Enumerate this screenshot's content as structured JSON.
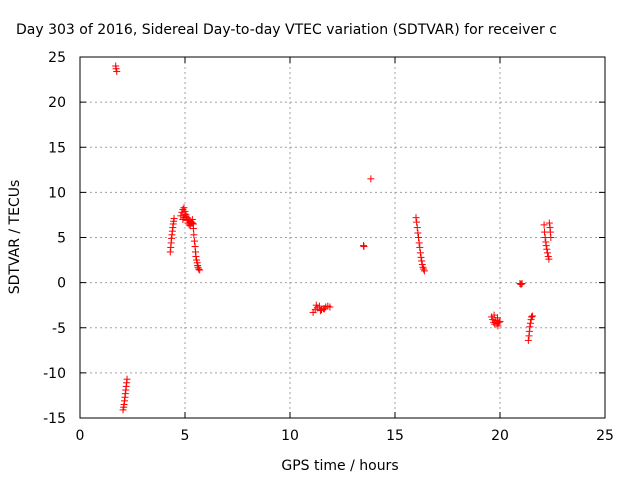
{
  "chart_data": {
    "type": "scatter",
    "title": "Day 303 of 2016, Sidereal Day-to-day VTEC variation (SDTVAR) for receiver c",
    "xlabel": "GPS time / hours",
    "ylabel": "SDTVAR / TECUs",
    "xlim": [
      0,
      25
    ],
    "ylim": [
      -15,
      25
    ],
    "xticks": [
      "0",
      "5",
      "10",
      "15",
      "20",
      "25"
    ],
    "yticks": [
      "25",
      "20",
      "15",
      "10",
      "5",
      "0",
      "-5",
      "-10",
      "-15"
    ],
    "xtick_values": [
      0,
      5,
      10,
      15,
      20,
      25
    ],
    "ytick_values": [
      25,
      20,
      15,
      10,
      5,
      0,
      -5,
      -10,
      -15
    ],
    "grid": true,
    "marker": "+",
    "color": "#ff0000",
    "clusters": [
      {
        "x": [
          1.7,
          1.72,
          1.75
        ],
        "y": [
          24.0,
          23.7,
          23.4
        ]
      },
      {
        "x": [
          2.05,
          2.08,
          2.1,
          2.12,
          2.14,
          2.16,
          2.18,
          2.2,
          2.22,
          2.24
        ],
        "y": [
          -14.1,
          -13.8,
          -13.5,
          -13.1,
          -12.7,
          -12.3,
          -11.9,
          -11.5,
          -11.1,
          -10.7
        ]
      },
      {
        "x": [
          4.3,
          4.32,
          4.34,
          4.36,
          4.38,
          4.4,
          4.42,
          4.44,
          4.46,
          4.48
        ],
        "y": [
          3.4,
          3.9,
          4.4,
          4.9,
          5.3,
          5.7,
          6.1,
          6.5,
          6.8,
          7.1
        ]
      },
      {
        "x": [
          4.8,
          4.85,
          4.9,
          4.95,
          5.0,
          5.05,
          5.1,
          5.15,
          5.2,
          5.25,
          5.3,
          5.35,
          5.4
        ],
        "y": [
          7.4,
          7.8,
          8.1,
          8.3,
          7.9,
          7.5,
          7.2,
          7.0,
          6.9,
          6.8,
          6.7,
          6.6,
          6.5
        ]
      },
      {
        "x": [
          4.9,
          4.95,
          5.0,
          5.05,
          5.1,
          5.15,
          5.2,
          5.25,
          5.3,
          5.35
        ],
        "y": [
          7.0,
          7.2,
          7.6,
          7.3,
          6.9,
          6.6,
          6.4,
          6.3,
          6.6,
          7.0
        ]
      },
      {
        "x": [
          5.4,
          5.42,
          5.45,
          5.48,
          5.5,
          5.52,
          5.55,
          5.58,
          5.6,
          5.62,
          5.65,
          5.7
        ],
        "y": [
          6.0,
          5.3,
          4.6,
          4.0,
          3.4,
          2.9,
          2.5,
          2.2,
          1.9,
          1.7,
          1.5,
          1.4
        ]
      },
      {
        "x": [
          11.1,
          11.2,
          11.3,
          11.4,
          11.5,
          11.6,
          11.7,
          11.8,
          11.9,
          11.25,
          11.45,
          11.65
        ],
        "y": [
          -3.3,
          -3.0,
          -2.8,
          -2.6,
          -3.0,
          -2.9,
          -2.7,
          -2.6,
          -2.7,
          -2.5,
          -3.1,
          -2.9
        ]
      },
      {
        "x": [
          13.5,
          13.52
        ],
        "y": [
          4.1,
          4.0
        ]
      },
      {
        "x": [
          13.85
        ],
        "y": [
          11.5
        ]
      },
      {
        "x": [
          16.0,
          16.03,
          16.06,
          16.09,
          16.12,
          16.15,
          16.18,
          16.21,
          16.24,
          16.27,
          16.3,
          16.33,
          16.36,
          16.4
        ],
        "y": [
          7.2,
          6.7,
          6.1,
          5.5,
          5.0,
          4.4,
          3.9,
          3.3,
          2.8,
          2.4,
          2.0,
          1.7,
          1.5,
          1.3
        ]
      },
      {
        "x": [
          19.6,
          19.65,
          19.7,
          19.75,
          19.8,
          19.85,
          19.9,
          19.95,
          20.0,
          19.72,
          19.88
        ],
        "y": [
          -3.8,
          -4.1,
          -4.4,
          -4.6,
          -4.2,
          -4.5,
          -4.8,
          -4.4,
          -4.3,
          -3.6,
          -3.9
        ]
      },
      {
        "x": [
          20.95,
          21.0,
          21.05
        ],
        "y": [
          -0.1,
          -0.2,
          -0.1
        ]
      },
      {
        "x": [
          21.35,
          21.38,
          21.4,
          21.42,
          21.45,
          21.48,
          21.5,
          21.55
        ],
        "y": [
          -6.4,
          -5.9,
          -5.4,
          -4.9,
          -4.5,
          -4.1,
          -3.8,
          -3.7
        ]
      },
      {
        "x": [
          22.1,
          22.12,
          22.15,
          22.18,
          22.2,
          22.23,
          22.26,
          22.3,
          22.33
        ],
        "y": [
          6.4,
          5.6,
          5.0,
          4.5,
          4.1,
          3.7,
          3.3,
          2.9,
          2.6
        ]
      },
      {
        "x": [
          22.35,
          22.38,
          22.4,
          22.42
        ],
        "y": [
          6.6,
          6.1,
          5.6,
          5.0
        ]
      }
    ]
  }
}
